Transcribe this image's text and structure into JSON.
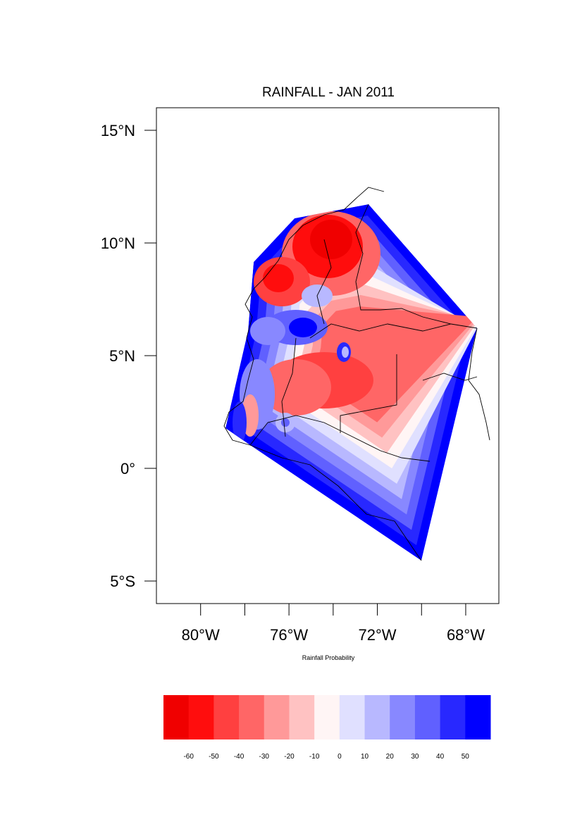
{
  "title": "RAINFALL - JAN 2011",
  "colorbar_title": "Rainfall Probability",
  "lat_ticks": [
    {
      "value": 15,
      "label": "15°N"
    },
    {
      "value": 10,
      "label": "10°N"
    },
    {
      "value": 5,
      "label": "5°N"
    },
    {
      "value": 0,
      "label": "0°"
    },
    {
      "value": -5,
      "label": "5°S"
    }
  ],
  "lon_ticks": [
    {
      "value": -80,
      "label": "80°W"
    },
    {
      "value": -76,
      "label": "76°W"
    },
    {
      "value": -72,
      "label": "72°W"
    },
    {
      "value": -68,
      "label": "68°W"
    }
  ],
  "lon_minor_ticks": [
    -78,
    -74,
    -70
  ],
  "extent": {
    "lon": [
      -82,
      -66.5
    ],
    "lat": [
      -6,
      16
    ]
  },
  "colorbar": {
    "labels": [
      "-60",
      "-50",
      "-40",
      "-30",
      "-20",
      "-10",
      "0",
      "10",
      "20",
      "30",
      "40",
      "50"
    ],
    "colors": [
      "#f00000",
      "#ff0d0d",
      "#ff4040",
      "#ff6666",
      "#ff9999",
      "#ffc2c2",
      "#fff5f5",
      "#e0e0ff",
      "#b8b8ff",
      "#8888ff",
      "#6060ff",
      "#2828ff",
      "#0000ff"
    ]
  }
}
